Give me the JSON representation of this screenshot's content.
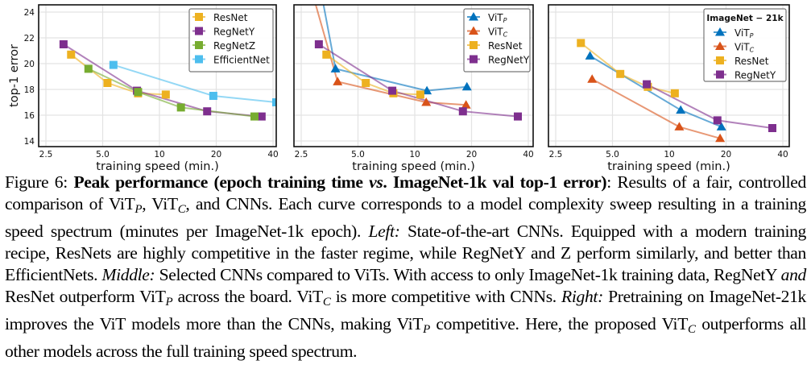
{
  "figure": {
    "caption": {
      "label": "Figure 6:",
      "title_bold_1": "Peak performance (epoch training time ",
      "title_vs": "vs",
      "title_bold_2": ". ImageNet-1k val top-1 error)",
      "seg1": ": Results of a fair, controlled comparison of ViT",
      "sub_p": "P",
      "seg2": ", ViT",
      "sub_c": "C",
      "seg3": ", and CNNs. Each curve corresponds to a model complexity sweep resulting in a training speed spectrum (minutes per ImageNet-1k epoch). ",
      "left_label": "Left:",
      "seg4": " State-of-the-art CNNs. Equipped with a modern training recipe, ResNets are highly competitive in the faster regime, while RegNetY and Z perform similarly, and better than EfficientNets. ",
      "middle_label": "Middle:",
      "seg5": " Selected CNNs compared to ViTs. With access to only ImageNet-1k training data, RegNetY ",
      "and_italic": "and",
      "seg6": " ResNet outperform ViT",
      "seg7": " across the board. ViT",
      "seg8": " is more competitive with CNNs. ",
      "right_label": "Right:",
      "seg9": " Pretraining on ImageNet-21k improves the ViT models more than the CNNs, making ViT",
      "seg10": " competitive. Here, the proposed ViT",
      "seg11": " outperforms all other models across the full training speed spectrum."
    }
  },
  "chart_data": [
    {
      "type": "line",
      "panel": "left",
      "title": "",
      "xlabel": "training speed (min.)",
      "ylabel": "top-1 error",
      "xscale": "log2",
      "xlim": [
        2.35,
        43
      ],
      "ylim": [
        13.5,
        24.5
      ],
      "xticks": [
        2.5,
        5.0,
        10,
        20,
        40
      ],
      "xtick_labels": [
        "2.5",
        "5.0",
        "10",
        "20",
        "40"
      ],
      "yticks": [
        14,
        16,
        18,
        20,
        22,
        24
      ],
      "ytick_labels": [
        "14",
        "16",
        "18",
        "20",
        "22",
        "24"
      ],
      "grid": true,
      "legend": {
        "placement": "top-right",
        "title": ""
      },
      "series": [
        {
          "name": "ResNet",
          "marker": "square",
          "color": "#EDB120",
          "x": [
            3.4,
            5.3,
            7.7,
            10.8
          ],
          "y": [
            20.7,
            18.5,
            17.7,
            17.6
          ]
        },
        {
          "name": "RegNetY",
          "marker": "square",
          "color": "#7E2F8E",
          "x": [
            3.1,
            7.6,
            17.9,
            34.8
          ],
          "y": [
            21.5,
            17.9,
            16.3,
            15.9
          ]
        },
        {
          "name": "RegNetZ",
          "marker": "square",
          "color": "#77AC30",
          "x": [
            4.2,
            7.7,
            13.0,
            31.9
          ],
          "y": [
            19.6,
            17.8,
            16.6,
            15.9
          ]
        },
        {
          "name": "EfficientNet",
          "marker": "square",
          "color": "#4DBEEE",
          "x": [
            5.7,
            19.3,
            41.6
          ],
          "y": [
            19.9,
            17.5,
            17.0
          ]
        }
      ]
    },
    {
      "type": "line",
      "panel": "middle",
      "title": "",
      "xlabel": "training speed (min.)",
      "ylabel": "",
      "xscale": "log2",
      "xlim": [
        2.35,
        43
      ],
      "ylim": [
        13.5,
        24.5
      ],
      "xticks": [
        2.5,
        5.0,
        10,
        20,
        40
      ],
      "xtick_labels": [
        "2.5",
        "5.0",
        "10",
        "20",
        "40"
      ],
      "yticks": [
        14,
        16,
        18,
        20,
        22,
        24
      ],
      "ytick_labels": [],
      "grid": true,
      "legend": {
        "placement": "top-right",
        "title": ""
      },
      "series": [
        {
          "name": "ViT",
          "sub": "P",
          "marker": "triangle",
          "color": "#0072BD",
          "x": [
            3.1,
            3.8,
            11.6,
            18.9
          ],
          "y": [
            26.5,
            19.6,
            17.9,
            18.2
          ],
          "offchart_first": true
        },
        {
          "name": "ViT",
          "sub": "C",
          "marker": "triangle",
          "color": "#D95319",
          "x": [
            2.8,
            3.9,
            11.5,
            18.7
          ],
          "y": [
            26.0,
            18.6,
            17.0,
            16.8
          ],
          "offchart_first": true
        },
        {
          "name": "ResNet",
          "marker": "square",
          "color": "#EDB120",
          "x": [
            3.4,
            5.5,
            7.7,
            10.7
          ],
          "y": [
            20.7,
            18.5,
            17.7,
            17.6
          ]
        },
        {
          "name": "RegNetY",
          "marker": "square",
          "color": "#7E2F8E",
          "x": [
            3.1,
            7.6,
            18.0,
            35.2
          ],
          "y": [
            21.5,
            17.9,
            16.3,
            15.9
          ]
        }
      ]
    },
    {
      "type": "line",
      "panel": "right",
      "title": "",
      "xlabel": "training speed (min.)",
      "ylabel": "",
      "xscale": "log2",
      "xlim": [
        2.35,
        43
      ],
      "ylim": [
        13.5,
        24.5
      ],
      "xticks": [
        2.5,
        5.0,
        10,
        20,
        40
      ],
      "xtick_labels": [
        "2.5",
        "5.0",
        "10",
        "20",
        "40"
      ],
      "yticks": [
        14,
        16,
        18,
        20,
        22,
        24
      ],
      "ytick_labels": [],
      "grid": true,
      "legend": {
        "placement": "top-right",
        "title": "ImageNet − 21k"
      },
      "series": [
        {
          "name": "ViT",
          "sub": "P",
          "marker": "triangle",
          "color": "#0072BD",
          "x": [
            3.8,
            11.5,
            18.9
          ],
          "y": [
            20.6,
            16.4,
            15.1
          ]
        },
        {
          "name": "ViT",
          "sub": "C",
          "marker": "triangle",
          "color": "#D95319",
          "x": [
            3.9,
            11.3,
            18.6
          ],
          "y": [
            18.8,
            15.1,
            14.2
          ]
        },
        {
          "name": "ResNet",
          "marker": "square",
          "color": "#EDB120",
          "x": [
            3.4,
            5.5,
            7.7,
            10.7
          ],
          "y": [
            21.6,
            19.2,
            18.2,
            17.7
          ]
        },
        {
          "name": "RegNetY",
          "marker": "square",
          "color": "#7E2F8E",
          "x": [
            7.6,
            18.0,
            35.2
          ],
          "y": [
            18.4,
            15.6,
            15.0
          ]
        }
      ]
    }
  ]
}
